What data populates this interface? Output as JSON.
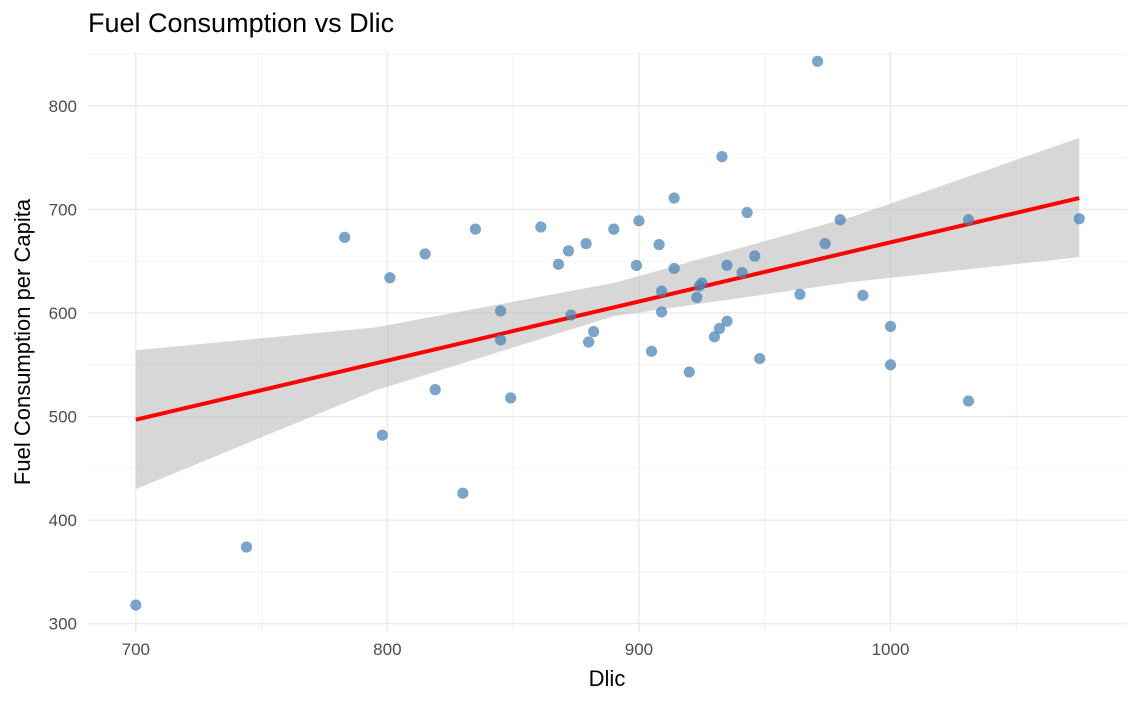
{
  "chart_data": {
    "type": "scatter",
    "title": "Fuel Consumption vs Dlic",
    "xlabel": "Dlic",
    "ylabel": "Fuel Consumption per Capita",
    "xlim": [
      681,
      1094
    ],
    "ylim": [
      292,
      852
    ],
    "x_ticks": [
      700,
      800,
      900,
      1000
    ],
    "y_ticks": [
      300,
      400,
      500,
      600,
      700,
      800
    ],
    "grid": true,
    "legend": "none",
    "colors": {
      "points": "#4682b4",
      "fit_line": "#ff0000",
      "confidence_band": "#bebebe"
    },
    "points": [
      {
        "x": 700,
        "y": 318
      },
      {
        "x": 744,
        "y": 374
      },
      {
        "x": 783,
        "y": 673
      },
      {
        "x": 798,
        "y": 482
      },
      {
        "x": 801,
        "y": 634
      },
      {
        "x": 815,
        "y": 657
      },
      {
        "x": 819,
        "y": 526
      },
      {
        "x": 830,
        "y": 426
      },
      {
        "x": 835,
        "y": 681
      },
      {
        "x": 845,
        "y": 602
      },
      {
        "x": 845,
        "y": 574
      },
      {
        "x": 849,
        "y": 518
      },
      {
        "x": 861,
        "y": 683
      },
      {
        "x": 868,
        "y": 647
      },
      {
        "x": 872,
        "y": 660
      },
      {
        "x": 873,
        "y": 598
      },
      {
        "x": 879,
        "y": 667
      },
      {
        "x": 880,
        "y": 572
      },
      {
        "x": 882,
        "y": 582
      },
      {
        "x": 890,
        "y": 681
      },
      {
        "x": 899,
        "y": 646
      },
      {
        "x": 900,
        "y": 689
      },
      {
        "x": 905,
        "y": 563
      },
      {
        "x": 908,
        "y": 666
      },
      {
        "x": 909,
        "y": 621
      },
      {
        "x": 909,
        "y": 601
      },
      {
        "x": 914,
        "y": 711
      },
      {
        "x": 914,
        "y": 643
      },
      {
        "x": 920,
        "y": 543
      },
      {
        "x": 923,
        "y": 615
      },
      {
        "x": 924,
        "y": 626
      },
      {
        "x": 925,
        "y": 629
      },
      {
        "x": 930,
        "y": 577
      },
      {
        "x": 932,
        "y": 585
      },
      {
        "x": 933,
        "y": 751
      },
      {
        "x": 935,
        "y": 646
      },
      {
        "x": 935,
        "y": 592
      },
      {
        "x": 941,
        "y": 639
      },
      {
        "x": 943,
        "y": 697
      },
      {
        "x": 946,
        "y": 655
      },
      {
        "x": 948,
        "y": 556
      },
      {
        "x": 964,
        "y": 618
      },
      {
        "x": 971,
        "y": 843
      },
      {
        "x": 974,
        "y": 667
      },
      {
        "x": 980,
        "y": 690
      },
      {
        "x": 989,
        "y": 617
      },
      {
        "x": 1000,
        "y": 587
      },
      {
        "x": 1000,
        "y": 550
      },
      {
        "x": 1031,
        "y": 690
      },
      {
        "x": 1031,
        "y": 515
      },
      {
        "x": 1075,
        "y": 691
      }
    ],
    "fit_line": {
      "x": [
        700,
        1075
      ],
      "y": [
        497,
        711
      ]
    },
    "confidence_band": [
      {
        "x": 700,
        "lower": 430,
        "upper": 564
      },
      {
        "x": 795,
        "lower": 525,
        "upper": 586
      },
      {
        "x": 890,
        "lower": 597,
        "upper": 629
      },
      {
        "x": 985,
        "lower": 630,
        "upper": 693
      },
      {
        "x": 1075,
        "lower": 654,
        "upper": 769
      }
    ]
  }
}
